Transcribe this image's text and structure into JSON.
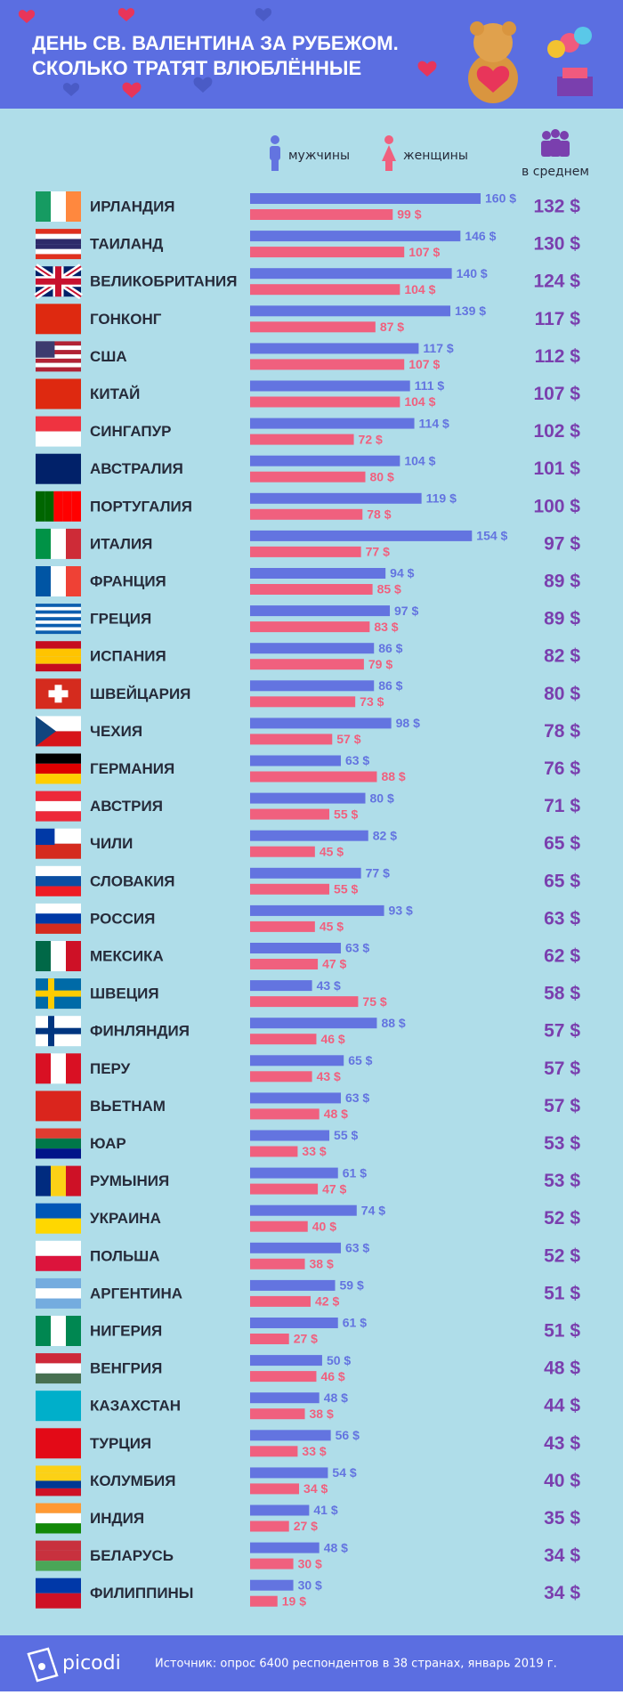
{
  "chart_data": {
    "type": "bar",
    "orientation": "horizontal",
    "title": [
      "ДЕНЬ СВ. ВАЛЕНТИНА ЗА РУБЕЖОМ.",
      "СКОЛЬКО ТРАТЯТ ВЛЮБЛЁННЫЕ"
    ],
    "categories": [
      "ИРЛАНДИЯ",
      "ТАИЛАНД",
      "ВЕЛИКОБРИТАНИЯ",
      "ГОНКОНГ",
      "США",
      "КИТАЙ",
      "СИНГАПУР",
      "АВСТРАЛИЯ",
      "ПОРТУГАЛИЯ",
      "ИТАЛИЯ",
      "ФРАНЦИЯ",
      "ГРЕЦИЯ",
      "ИСПАНИЯ",
      "ШВЕЙЦАРИЯ",
      "ЧЕХИЯ",
      "ГЕРМАНИЯ",
      "АВСТРИЯ",
      "ЧИЛИ",
      "СЛОВАКИЯ",
      "РОССИЯ",
      "МЕКСИКА",
      "ШВЕЦИЯ",
      "ФИНЛЯНДИЯ",
      "ПЕРУ",
      "ВЬЕТНАМ",
      "ЮАР",
      "РУМЫНИЯ",
      "УКРАИНА",
      "ПОЛЬША",
      "АРГЕНТИНА",
      "НИГЕРИЯ",
      "ВЕНГРИЯ",
      "КАЗАХСТАН",
      "ТУРЦИЯ",
      "КОЛУМБИЯ",
      "ИНДИЯ",
      "БЕЛАРУСЬ",
      "ФИЛИППИНЫ"
    ],
    "series": [
      {
        "name": "мужчины",
        "color": "#6374e0",
        "values": [
          160,
          146,
          140,
          139,
          117,
          111,
          114,
          104,
          119,
          154,
          94,
          97,
          86,
          86,
          98,
          63,
          80,
          82,
          77,
          93,
          63,
          43,
          88,
          65,
          63,
          55,
          61,
          74,
          63,
          59,
          61,
          50,
          48,
          56,
          54,
          41,
          48,
          30
        ],
        "value_labels": [
          "160 $",
          "146 $",
          "140 $",
          "139 $",
          "117 $",
          "111 $",
          "114 $",
          "104 $",
          "119 $",
          "154 $",
          "94 $",
          "97 $",
          "86 $",
          "86 $",
          "98 $",
          "63 $",
          "80 $",
          "82 $",
          "77 $",
          "93 $",
          "63 $",
          "43 $",
          "88 $",
          "65 $",
          "63 $",
          "55 $",
          "61 $",
          "74 $",
          "63 $",
          "59 $",
          "61 $",
          "50 $",
          "48 $",
          "56 $",
          "54 $",
          "41 $",
          "48 $",
          "30 $"
        ]
      },
      {
        "name": "женщины",
        "color": "#f0607e",
        "values": [
          99,
          107,
          104,
          87,
          107,
          104,
          72,
          80,
          78,
          77,
          85,
          83,
          79,
          73,
          57,
          88,
          55,
          45,
          55,
          45,
          47,
          75,
          46,
          43,
          48,
          33,
          47,
          40,
          38,
          42,
          27,
          46,
          38,
          33,
          34,
          27,
          30,
          19
        ],
        "value_labels": [
          "99 $",
          "107 $",
          "104 $",
          "87 $",
          "107 $",
          "104 $",
          "72 $",
          "80 $",
          "78 $",
          "77 $",
          "85 $",
          "83 $",
          "79 $",
          "73 $",
          "57 $",
          "88 $",
          "55 $",
          "45 $",
          "55 $",
          "45 $",
          "47 $",
          "75 $",
          "46 $",
          "43 $",
          "48 $",
          "33 $",
          "47 $",
          "40 $",
          "38 $",
          "42 $",
          "27 $",
          "46 $",
          "38 $",
          "33 $",
          "34 $",
          "27 $",
          "30 $",
          "19 $"
        ]
      },
      {
        "name": "в среднем",
        "color": "#7a3fae",
        "values": [
          132,
          130,
          124,
          117,
          112,
          107,
          102,
          101,
          100,
          97,
          89,
          89,
          82,
          80,
          78,
          76,
          71,
          65,
          65,
          63,
          62,
          58,
          57,
          57,
          57,
          53,
          53,
          52,
          52,
          51,
          51,
          48,
          44,
          43,
          40,
          35,
          34,
          34
        ],
        "value_labels": [
          "132 $",
          "130 $",
          "124 $",
          "117 $",
          "112 $",
          "107 $",
          "102 $",
          "101 $",
          "100 $",
          "97 $",
          "89 $",
          "89 $",
          "82 $",
          "80 $",
          "78 $",
          "76 $",
          "71 $",
          "65 $",
          "65 $",
          "63 $",
          "62 $",
          "58 $",
          "57 $",
          "57 $",
          "57 $",
          "53 $",
          "53 $",
          "52 $",
          "52 $",
          "51 $",
          "51 $",
          "48 $",
          "44 $",
          "43 $",
          "40 $",
          "35 $",
          "34 $",
          "34 $"
        ]
      }
    ],
    "logo": "picodi",
    "source": "Источник: опрос 6400 респондентов в 38 странах, январь 2019 г."
  }
}
